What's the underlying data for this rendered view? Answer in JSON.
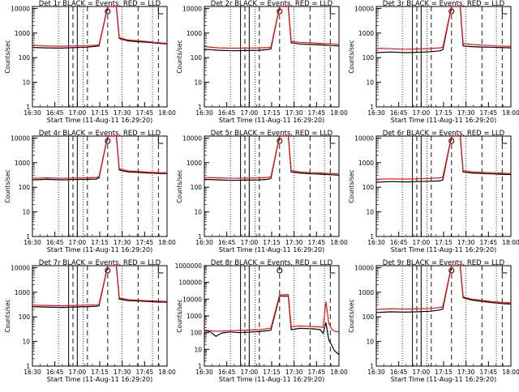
{
  "chart_data": [
    {
      "type": "line",
      "title": "Det 1r  BLACK = Events, RED = LLD",
      "xlabel": "Start Time (11-Aug-11 16:29:20)",
      "ylabel": "Counts/sec",
      "log_scale": true,
      "ylim": [
        1,
        12000
      ],
      "x_ticks": [
        "16:30",
        "16:45",
        "17:00",
        "17:15",
        "17:30",
        "17:45",
        "18:00"
      ],
      "y_ticks": [
        "1",
        "10",
        "100",
        "1000",
        "10000"
      ],
      "series": [
        {
          "color": "#000000",
          "x": [
            0,
            10,
            20,
            28,
            38,
            44,
            46,
            52,
            58,
            60,
            66,
            74,
            80,
            84,
            88,
            93
          ],
          "y": [
            260,
            250,
            245,
            255,
            270,
            290,
            300,
            12000,
            12000,
            600,
            480,
            440,
            420,
            400,
            380,
            360
          ]
        },
        {
          "color": "#ee1111",
          "x": [
            0,
            10,
            20,
            28,
            38,
            44,
            46,
            52,
            58,
            60,
            66,
            74,
            80,
            84,
            88,
            93
          ],
          "y": [
            320,
            300,
            290,
            300,
            310,
            320,
            330,
            12000,
            12000,
            650,
            520,
            480,
            450,
            420,
            400,
            380
          ]
        }
      ]
    },
    {
      "type": "line",
      "title": "Det 2r  BLACK = Events, RED = LLD",
      "xlabel": "Start Time (11-Aug-11 16:29:20)",
      "ylabel": "Counts/sec",
      "log_scale": true,
      "ylim": [
        1,
        12000
      ],
      "x_ticks": [
        "16:30",
        "16:45",
        "17:00",
        "17:15",
        "17:30",
        "17:45",
        "18:00"
      ],
      "y_ticks": [
        "1",
        "10",
        "100",
        "1000",
        "10000"
      ],
      "series": [
        {
          "color": "#000000",
          "x": [
            0,
            10,
            20,
            28,
            38,
            44,
            46,
            52,
            58,
            60,
            66,
            74,
            80,
            84,
            88,
            93
          ],
          "y": [
            220,
            200,
            190,
            195,
            200,
            215,
            230,
            12000,
            12000,
            400,
            360,
            340,
            330,
            320,
            310,
            300
          ]
        },
        {
          "color": "#ee1111",
          "x": [
            0,
            10,
            20,
            28,
            38,
            44,
            46,
            52,
            58,
            60,
            66,
            74,
            80,
            84,
            88,
            93
          ],
          "y": [
            280,
            250,
            240,
            245,
            250,
            260,
            270,
            12000,
            12000,
            460,
            420,
            400,
            380,
            370,
            360,
            350
          ]
        }
      ]
    },
    {
      "type": "line",
      "title": "Det 3r  BLACK = Events, RED = LLD",
      "xlabel": "Start Time (11-Aug-11 16:29:20)",
      "ylabel": "Counts/sec",
      "log_scale": true,
      "ylim": [
        1,
        12000
      ],
      "x_ticks": [
        "16:30",
        "16:45",
        "17:00",
        "17:15",
        "17:30",
        "17:45",
        "18:00"
      ],
      "y_ticks": [
        "1",
        "10",
        "100",
        "1000",
        "10000"
      ],
      "series": [
        {
          "color": "#000000",
          "x": [
            0,
            10,
            20,
            28,
            38,
            44,
            46,
            52,
            58,
            60,
            66,
            74,
            80,
            84,
            88,
            93
          ],
          "y": [
            160,
            170,
            160,
            165,
            175,
            190,
            210,
            12000,
            12000,
            300,
            280,
            270,
            265,
            260,
            255,
            250
          ]
        },
        {
          "color": "#ee1111",
          "x": [
            0,
            10,
            20,
            28,
            38,
            44,
            46,
            52,
            58,
            60,
            66,
            74,
            80,
            84,
            88,
            93
          ],
          "y": [
            240,
            230,
            220,
            225,
            235,
            250,
            270,
            12000,
            12000,
            380,
            340,
            320,
            310,
            300,
            290,
            290
          ]
        }
      ]
    },
    {
      "type": "line",
      "title": "Det 4r  BLACK = Events, RED = LLD",
      "xlabel": "Start Time (11-Aug-11 16:29:20)",
      "ylabel": "Counts/sec",
      "log_scale": true,
      "ylim": [
        1,
        12000
      ],
      "x_ticks": [
        "16:30",
        "16:45",
        "17:00",
        "17:15",
        "17:30",
        "17:45",
        "18:00"
      ],
      "y_ticks": [
        "1",
        "10",
        "100",
        "1000",
        "10000"
      ],
      "series": [
        {
          "color": "#000000",
          "x": [
            0,
            10,
            20,
            28,
            38,
            44,
            46,
            52,
            58,
            60,
            66,
            74,
            80,
            84,
            88,
            93
          ],
          "y": [
            200,
            210,
            200,
            205,
            210,
            215,
            240,
            12000,
            12000,
            500,
            420,
            400,
            380,
            370,
            360,
            360
          ]
        },
        {
          "color": "#ee1111",
          "x": [
            0,
            10,
            20,
            28,
            38,
            44,
            46,
            52,
            58,
            60,
            66,
            74,
            80,
            84,
            88,
            93
          ],
          "y": [
            230,
            240,
            230,
            235,
            240,
            250,
            270,
            12000,
            12000,
            560,
            460,
            430,
            410,
            400,
            390,
            390
          ]
        }
      ]
    },
    {
      "type": "line",
      "title": "Det 5r  BLACK = Events, RED = LLD",
      "xlabel": "Start Time (11-Aug-11 16:29:20)",
      "ylabel": "Counts/sec",
      "log_scale": true,
      "ylim": [
        1,
        12000
      ],
      "x_ticks": [
        "16:30",
        "16:45",
        "17:00",
        "17:15",
        "17:30",
        "17:45",
        "18:00"
      ],
      "y_ticks": [
        "1",
        "10",
        "100",
        "1000",
        "10000"
      ],
      "series": [
        {
          "color": "#000000",
          "x": [
            0,
            10,
            20,
            28,
            38,
            44,
            46,
            52,
            58,
            60,
            66,
            74,
            80,
            84,
            88,
            93
          ],
          "y": [
            210,
            200,
            190,
            195,
            200,
            210,
            230,
            12000,
            12000,
            420,
            380,
            350,
            340,
            330,
            320,
            310
          ]
        },
        {
          "color": "#ee1111",
          "x": [
            0,
            10,
            20,
            28,
            38,
            44,
            46,
            52,
            58,
            60,
            66,
            74,
            80,
            84,
            88,
            93
          ],
          "y": [
            250,
            240,
            230,
            235,
            240,
            250,
            270,
            12000,
            12000,
            480,
            420,
            390,
            380,
            370,
            360,
            350
          ]
        }
      ]
    },
    {
      "type": "line",
      "title": "Det 6r  BLACK = Events, RED = LLD",
      "xlabel": "Start Time (11-Aug-11 16:29:20)",
      "ylabel": "Counts/sec",
      "log_scale": true,
      "ylim": [
        1,
        12000
      ],
      "x_ticks": [
        "16:30",
        "16:45",
        "17:00",
        "17:15",
        "17:30",
        "17:45",
        "18:00"
      ],
      "y_ticks": [
        "1",
        "10",
        "100",
        "1000",
        "10000"
      ],
      "series": [
        {
          "color": "#000000",
          "x": [
            0,
            10,
            20,
            28,
            38,
            44,
            46,
            52,
            58,
            60,
            66,
            74,
            80,
            84,
            88,
            93
          ],
          "y": [
            160,
            170,
            165,
            170,
            175,
            180,
            200,
            12000,
            12000,
            420,
            380,
            360,
            350,
            340,
            330,
            330
          ]
        },
        {
          "color": "#ee1111",
          "x": [
            0,
            10,
            20,
            28,
            38,
            44,
            46,
            52,
            58,
            60,
            66,
            74,
            80,
            84,
            88,
            93
          ],
          "y": [
            210,
            220,
            215,
            220,
            230,
            240,
            260,
            12000,
            12000,
            480,
            420,
            400,
            390,
            380,
            370,
            360
          ]
        }
      ]
    },
    {
      "type": "line",
      "title": "Det 7r  BLACK = Events, RED = LLD",
      "xlabel": "Start Time (11-Aug-11 16:29:20)",
      "ylabel": "Counts/sec",
      "log_scale": true,
      "ylim": [
        1,
        12000
      ],
      "x_ticks": [
        "16:30",
        "16:45",
        "17:00",
        "17:15",
        "17:30",
        "17:45",
        "18:00"
      ],
      "y_ticks": [
        "1",
        "10",
        "100",
        "1000",
        "10000"
      ],
      "series": [
        {
          "color": "#000000",
          "x": [
            0,
            10,
            20,
            28,
            38,
            44,
            46,
            52,
            58,
            60,
            66,
            74,
            80,
            84,
            88,
            93
          ],
          "y": [
            260,
            250,
            240,
            250,
            260,
            270,
            280,
            12000,
            12000,
            520,
            460,
            440,
            420,
            410,
            400,
            390
          ]
        },
        {
          "color": "#ee1111",
          "x": [
            0,
            10,
            20,
            28,
            38,
            44,
            46,
            52,
            58,
            60,
            66,
            74,
            80,
            84,
            88,
            93
          ],
          "y": [
            300,
            290,
            280,
            290,
            300,
            310,
            320,
            12000,
            12000,
            580,
            500,
            470,
            450,
            440,
            430,
            420
          ]
        }
      ]
    },
    {
      "type": "line",
      "title": "Det 8r  BLACK = Events, RED = LLD",
      "xlabel": "Start Time (11-Aug-11 16:29:20)",
      "ylabel": "Counts/sec",
      "log_scale": true,
      "ylim": [
        1,
        1000000
      ],
      "x_ticks": [
        "16:30",
        "16:45",
        "17:00",
        "17:15",
        "17:30",
        "17:45",
        "18:00"
      ],
      "y_ticks": [
        "1",
        "10",
        "100",
        "1000",
        "10000",
        "100000",
        "1000000"
      ],
      "series": [
        {
          "color": "#000000",
          "x": [
            0,
            4,
            8,
            12,
            18,
            24,
            30,
            38,
            44,
            46,
            52,
            58,
            60,
            66,
            74,
            80,
            82,
            84,
            86,
            88,
            90,
            93
          ],
          "y": [
            130,
            115,
            60,
            95,
            110,
            100,
            105,
            115,
            130,
            140,
            15000,
            15000,
            150,
            180,
            170,
            150,
            90,
            400,
            35,
            18,
            8,
            5
          ]
        },
        {
          "color": "#ee1111",
          "x": [
            0,
            4,
            8,
            12,
            18,
            24,
            30,
            38,
            44,
            46,
            52,
            58,
            60,
            66,
            74,
            80,
            82,
            84,
            86,
            88,
            90,
            93
          ],
          "y": [
            140,
            130,
            120,
            125,
            130,
            135,
            140,
            150,
            170,
            190,
            18000,
            19000,
            220,
            250,
            230,
            220,
            200,
            7000,
            350,
            160,
            120,
            110
          ]
        }
      ]
    },
    {
      "type": "line",
      "title": "Det 9r  BLACK = Events, RED = LLD",
      "xlabel": "Start Time (11-Aug-11 16:29:20)",
      "ylabel": "Counts/sec",
      "log_scale": true,
      "ylim": [
        1,
        12000
      ],
      "x_ticks": [
        "16:30",
        "16:45",
        "17:00",
        "17:15",
        "17:30",
        "17:45",
        "18:00"
      ],
      "y_ticks": [
        "1",
        "10",
        "100",
        "1000",
        "10000"
      ],
      "series": [
        {
          "color": "#000000",
          "x": [
            0,
            10,
            20,
            28,
            38,
            44,
            46,
            52,
            58,
            60,
            66,
            74,
            80,
            84,
            88,
            93
          ],
          "y": [
            150,
            160,
            155,
            160,
            170,
            190,
            210,
            12000,
            12000,
            600,
            480,
            420,
            380,
            360,
            340,
            330
          ]
        },
        {
          "color": "#ee1111",
          "x": [
            0,
            10,
            20,
            28,
            38,
            44,
            46,
            52,
            58,
            60,
            66,
            74,
            80,
            84,
            88,
            93
          ],
          "y": [
            200,
            210,
            205,
            210,
            220,
            240,
            260,
            12000,
            12000,
            650,
            520,
            460,
            420,
            400,
            380,
            370
          ]
        }
      ]
    }
  ]
}
